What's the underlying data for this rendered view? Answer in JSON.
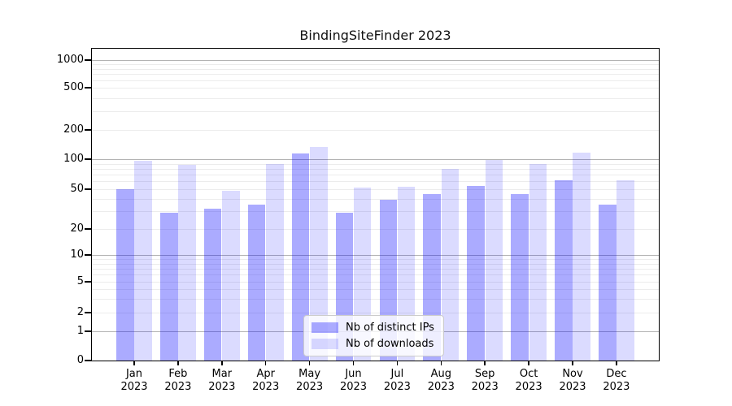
{
  "chart_data": {
    "type": "bar",
    "title": "BindingSiteFinder 2023",
    "categories": [
      "Jan 2023",
      "Feb 2023",
      "Mar 2023",
      "Apr 2023",
      "May 2023",
      "Jun 2023",
      "Jul 2023",
      "Aug 2023",
      "Sep 2023",
      "Oct 2023",
      "Nov 2023",
      "Dec 2023"
    ],
    "series": [
      {
        "name": "Nb of distinct IPs",
        "color": "rgba(0,0,255,0.33)",
        "values": [
          50,
          29,
          32,
          35,
          114,
          29,
          39,
          45,
          54,
          45,
          61,
          35
        ]
      },
      {
        "name": "Nb of downloads",
        "color": "rgba(0,0,255,0.14)",
        "values": [
          97,
          87,
          48,
          90,
          133,
          52,
          53,
          80,
          98,
          90,
          117,
          61
        ]
      }
    ],
    "yscale": "symlog",
    "ylim": [
      0,
      1000
    ],
    "yticks": [
      0,
      1,
      2,
      5,
      10,
      20,
      50,
      100,
      200,
      500,
      1000
    ],
    "grid": true,
    "legend_position": "lower center",
    "colors": {
      "axis": "#000000",
      "major_grid": "#b3b3b3",
      "minor_grid": "#ececec"
    }
  }
}
